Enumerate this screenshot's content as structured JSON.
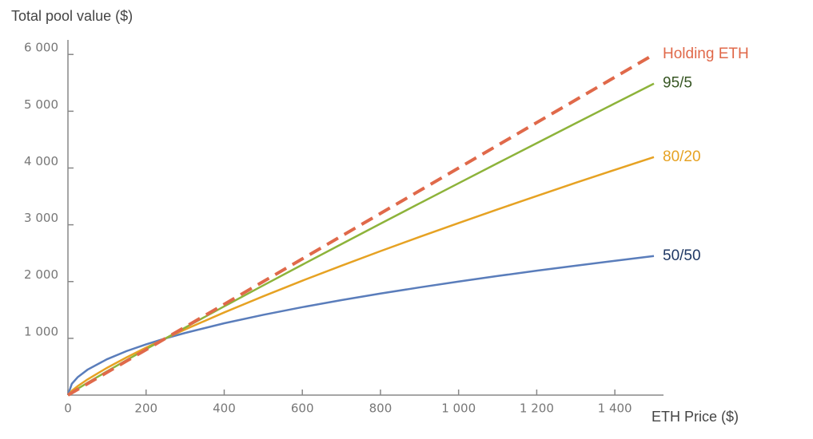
{
  "chart_data": {
    "type": "line",
    "ylabel": "Total pool value ($)",
    "xlabel": "ETH Price ($)",
    "x": [
      0,
      10,
      25,
      50,
      100,
      150,
      200,
      250,
      300,
      400,
      500,
      600,
      700,
      800,
      900,
      1000,
      1100,
      1200,
      1300,
      1400,
      1500
    ],
    "series": [
      {
        "name": "50/50",
        "color": "#5a7dbb",
        "label_color": "#1f3864",
        "dashed": false,
        "values": [
          0,
          200,
          316,
          447,
          632,
          775,
          894,
          1000,
          1095,
          1265,
          1414,
          1549,
          1673,
          1789,
          1897,
          2000,
          2098,
          2191,
          2280,
          2366,
          2449
        ]
      },
      {
        "name": "80/20",
        "color": "#e6a223",
        "label_color": "#e6a223",
        "dashed": false,
        "values": [
          0,
          76,
          158,
          276,
          480,
          664,
          837,
          1000,
          1157,
          1456,
          1741,
          2015,
          2279,
          2536,
          2786,
          3031,
          3272,
          3507,
          3740,
          3968,
          4193
        ]
      },
      {
        "name": "95/5",
        "color": "#8db33a",
        "label_color": "#375623",
        "dashed": false,
        "values": [
          0,
          47,
          112,
          217,
          419,
          616,
          809,
          1000,
          1189,
          1563,
          1932,
          2297,
          2659,
          3019,
          3377,
          3732,
          4086,
          4438,
          4789,
          5138,
          5487
        ]
      },
      {
        "name": "Holding ETH",
        "color": "#e0694a",
        "label_color": "#e0694a",
        "dashed": true,
        "values": [
          0,
          40,
          100,
          200,
          400,
          600,
          800,
          1000,
          1200,
          1600,
          2000,
          2400,
          2800,
          3200,
          3600,
          4000,
          4400,
          4800,
          5200,
          5600,
          6000
        ]
      }
    ],
    "xlim": [
      0,
      1500
    ],
    "ylim": [
      0,
      6200
    ],
    "xticks": [
      0,
      200,
      400,
      600,
      800,
      {
        "value": 1000,
        "label": "1 000"
      },
      {
        "value": 1200,
        "label": "1 200"
      },
      {
        "value": 1400,
        "label": "1 400"
      }
    ],
    "yticks": [
      {
        "value": 1000,
        "label": "1 000"
      },
      {
        "value": 2000,
        "label": "2 000"
      },
      {
        "value": 3000,
        "label": "3 000"
      },
      {
        "value": 4000,
        "label": "4 000"
      },
      {
        "value": 5000,
        "label": "5 000"
      },
      {
        "value": 6000,
        "label": "6 000"
      }
    ]
  }
}
